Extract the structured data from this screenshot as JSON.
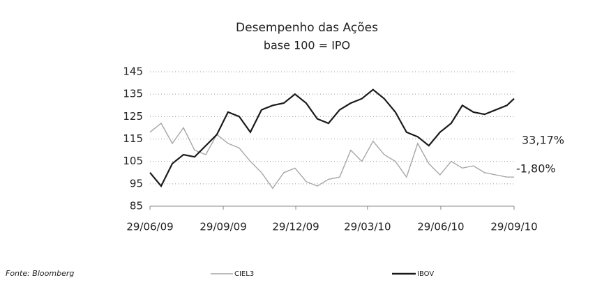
{
  "chart_data": {
    "type": "line",
    "title": "Desempenho das Ações",
    "subtitle": "base 100 = IPO",
    "source": "Fonte: Bloomberg",
    "x": [
      "2009-06-29",
      "2009-07-13",
      "2009-07-27",
      "2009-08-10",
      "2009-08-24",
      "2009-09-07",
      "2009-09-21",
      "2009-10-05",
      "2009-10-19",
      "2009-11-02",
      "2009-11-16",
      "2009-11-30",
      "2009-12-14",
      "2009-12-28",
      "2010-01-11",
      "2010-01-25",
      "2010-02-08",
      "2010-02-22",
      "2010-03-08",
      "2010-03-22",
      "2010-04-05",
      "2010-04-19",
      "2010-05-03",
      "2010-05-17",
      "2010-05-31",
      "2010-06-14",
      "2010-06-28",
      "2010-07-12",
      "2010-07-26",
      "2010-08-09",
      "2010-08-23",
      "2010-09-06",
      "2010-09-20",
      "2010-09-29"
    ],
    "series": [
      {
        "name": "CIEL3",
        "color": "#a6a6a6",
        "values": [
          118,
          122,
          113,
          120,
          110,
          108,
          117,
          113,
          111,
          105,
          100,
          93,
          100,
          102,
          96,
          94,
          97,
          98,
          110,
          105,
          114,
          108,
          105,
          98,
          113,
          104,
          99,
          105,
          102,
          103,
          100,
          99,
          98,
          98
        ]
      },
      {
        "name": "IBOV",
        "color": "#1a1a1a",
        "values": [
          100,
          94,
          104,
          108,
          107,
          112,
          117,
          127,
          125,
          118,
          128,
          130,
          131,
          135,
          131,
          124,
          122,
          128,
          131,
          133,
          137,
          133,
          127,
          118,
          116,
          112,
          118,
          122,
          130,
          127,
          126,
          128,
          130,
          133
        ]
      }
    ],
    "annotations": [
      "33,17%",
      "-1,80%"
    ],
    "xlim": [
      "2009-06-29",
      "2010-09-29"
    ],
    "xticks": [
      {
        "value": "2009-06-29",
        "label": "29/06/09"
      },
      {
        "value": "2009-09-29",
        "label": "29/09/09"
      },
      {
        "value": "2009-12-29",
        "label": "29/12/09"
      },
      {
        "value": "2010-03-29",
        "label": "29/03/10"
      },
      {
        "value": "2010-06-29",
        "label": "29/06/10"
      },
      {
        "value": "2010-09-29",
        "label": "29/09/10"
      }
    ],
    "ylim": [
      85,
      145
    ],
    "yticks": [
      85,
      95,
      105,
      115,
      125,
      135,
      145
    ],
    "grid": true
  }
}
